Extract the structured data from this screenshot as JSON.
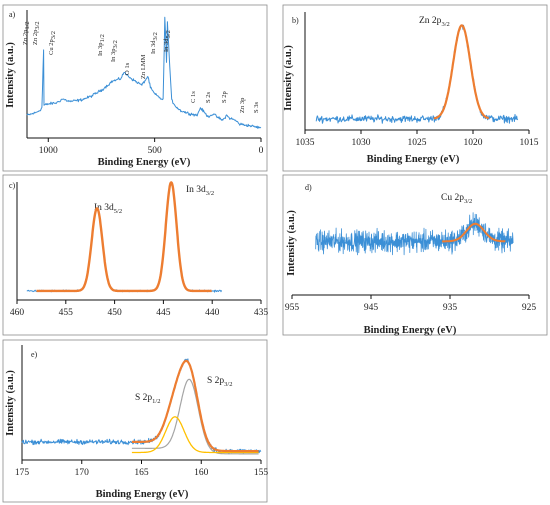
{
  "colors": {
    "raw": "#3b8fd6",
    "fit": "#ed7d31",
    "component_a": "#ffc000",
    "component_b": "#a5a5a5"
  },
  "chart_data": [
    {
      "id": "a",
      "type": "line",
      "panel_label": "a)",
      "xlabel": "Binding Energy (eV)",
      "ylabel": "Intensity (a.u.)",
      "xlim": [
        1100,
        0
      ],
      "x_reversed": true,
      "xticks": [
        1000,
        500,
        0
      ],
      "series": [
        {
          "role": "raw",
          "x": [
            1100,
            1080,
            1060,
            1050,
            1040,
            1030,
            1022,
            1020,
            1000,
            960,
            933,
            900,
            850,
            800,
            750,
            720,
            700,
            660,
            645,
            630,
            600,
            560,
            531,
            520,
            500,
            460,
            452,
            444,
            440,
            420,
            400,
            380,
            350,
            300,
            285,
            250,
            225,
            200,
            180,
            162,
            150,
            120,
            100,
            60,
            30,
            0
          ],
          "y": [
            18,
            19,
            20,
            21,
            22,
            24,
            70,
            26,
            27,
            28,
            31,
            29,
            30,
            33,
            38,
            42,
            45,
            47,
            52,
            50,
            46,
            42,
            49,
            40,
            35,
            30,
            96,
            60,
            92,
            30,
            25,
            22,
            20,
            18,
            24,
            17,
            19,
            16,
            14,
            18,
            16,
            14,
            11,
            10,
            9,
            8
          ]
        }
      ],
      "annotations": [
        "Zn 2p1/2",
        "Zn 2p3/2",
        "Cu 2p3/2",
        "In 3p1/2",
        "In 3p3/2",
        "O 1s",
        "Zn LMM",
        "In 3d3/2",
        "In 3d5/2",
        "C 1s",
        "S 2s",
        "S 2p",
        "Zn 3p",
        "S 3s"
      ]
    },
    {
      "id": "b",
      "type": "line",
      "panel_label": "b)",
      "title": "Zn 2p3/2",
      "xlabel": "Binding Energy (eV)",
      "ylabel": "Intensity (a.u.)",
      "xlim": [
        1035,
        1015
      ],
      "x_reversed": true,
      "xticks": [
        1035,
        1030,
        1025,
        1020,
        1015
      ],
      "peak_center": 1021,
      "peak_fwhm": 1.8,
      "baseline": 8,
      "peak_height": 82,
      "raw_range": [
        1034,
        1016
      ],
      "fit_range": [
        1023.5,
        1018.6
      ]
    },
    {
      "id": "c",
      "type": "line",
      "panel_label": "c)",
      "peaks": [
        {
          "label": "In 3d5/2",
          "center": 444.2,
          "fwhm": 1.3,
          "height": 92
        },
        {
          "label": "In 3d3/2",
          "center": 451.8,
          "fwhm": 1.3,
          "height": 70
        }
      ],
      "xlabel": "",
      "ylabel": "Intensity (a.u.)",
      "xlim": [
        460,
        435
      ],
      "x_reversed": true,
      "xticks": [
        460,
        455,
        450,
        445,
        440,
        435
      ],
      "baseline": 6,
      "raw_range": [
        459,
        439
      ],
      "fit_range": [
        458,
        440
      ]
    },
    {
      "id": "d",
      "type": "line",
      "panel_label": "d)",
      "title": "Cu 2p3/2",
      "xlabel": "Binding Energy (eV)",
      "ylabel": "Intensity (a.u.)",
      "xlim": [
        955,
        925
      ],
      "x_reversed": true,
      "xticks": [
        955,
        945,
        935,
        925
      ],
      "peak_center": 931.8,
      "peak_fwhm": 2.6,
      "baseline": 46,
      "peak_height": 16,
      "noise": 9,
      "raw_range": [
        952,
        927
      ],
      "fit_range": [
        936,
        928
      ]
    },
    {
      "id": "e",
      "type": "line",
      "panel_label": "e)",
      "xlabel": "Binding Energy (eV)",
      "ylabel": "Intensity (a.u.)",
      "xlim": [
        175,
        155
      ],
      "x_reversed": true,
      "xticks": [
        175,
        170,
        165,
        160,
        155
      ],
      "peaks": [
        {
          "label": "S 2p3/2",
          "center": 161.0,
          "fwhm": 1.8,
          "height": 62
        },
        {
          "label": "S 2p1/2",
          "center": 162.2,
          "fwhm": 1.8,
          "height": 31
        }
      ],
      "baseline_left": 14,
      "baseline_right": 6,
      "raw_range": [
        175,
        155
      ],
      "fit_range": [
        165.8,
        155.2
      ]
    }
  ]
}
